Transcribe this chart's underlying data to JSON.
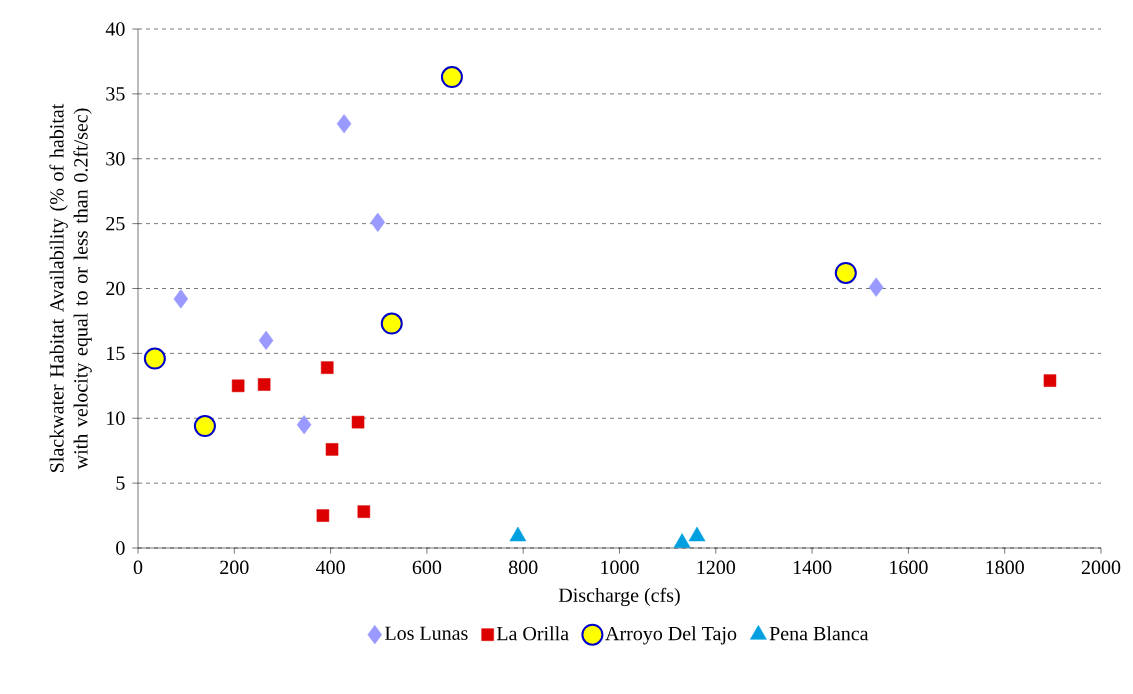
{
  "chart_data": {
    "type": "scatter",
    "xlabel": "Discharge (cfs)",
    "ylabel": "Slackwater Habitat Availability (% of habitat with velocity equal to or less than 0.2ft/sec)",
    "xlim": [
      0,
      2000
    ],
    "xticks": [
      0,
      200,
      400,
      600,
      800,
      1000,
      1200,
      1400,
      1600,
      1800,
      2000
    ],
    "ylim": [
      0,
      40
    ],
    "yticks": [
      0,
      5,
      10,
      15,
      20,
      25,
      30,
      35,
      40
    ],
    "grid": "y",
    "legend": "bottom",
    "series": [
      {
        "name": "Los Lunas",
        "color": "#9999ff",
        "marker": "diamond",
        "x": [
          89,
          266,
          345,
          428,
          498,
          1533
        ],
        "values": [
          19.2,
          16.0,
          9.5,
          32.7,
          25.1,
          20.1
        ]
      },
      {
        "name": "La Orilla",
        "color": "#dd0000",
        "marker": "square",
        "x": [
          208,
          262,
          393,
          403,
          384,
          457,
          469,
          1894
        ],
        "values": [
          12.5,
          12.6,
          13.9,
          7.6,
          2.5,
          9.7,
          2.8,
          12.9
        ]
      },
      {
        "name": "Arroyo Del Tajo",
        "color": "#ffff00",
        "marker": "circle",
        "x": [
          35,
          139,
          527,
          652,
          1470
        ],
        "values": [
          14.6,
          9.4,
          17.3,
          36.3,
          21.2
        ]
      },
      {
        "name": "Pena Blanca",
        "color": "#00a0e0",
        "marker": "triangle",
        "x": [
          789,
          1130,
          1161
        ],
        "values": [
          0.9,
          0.4,
          0.9
        ]
      }
    ]
  }
}
